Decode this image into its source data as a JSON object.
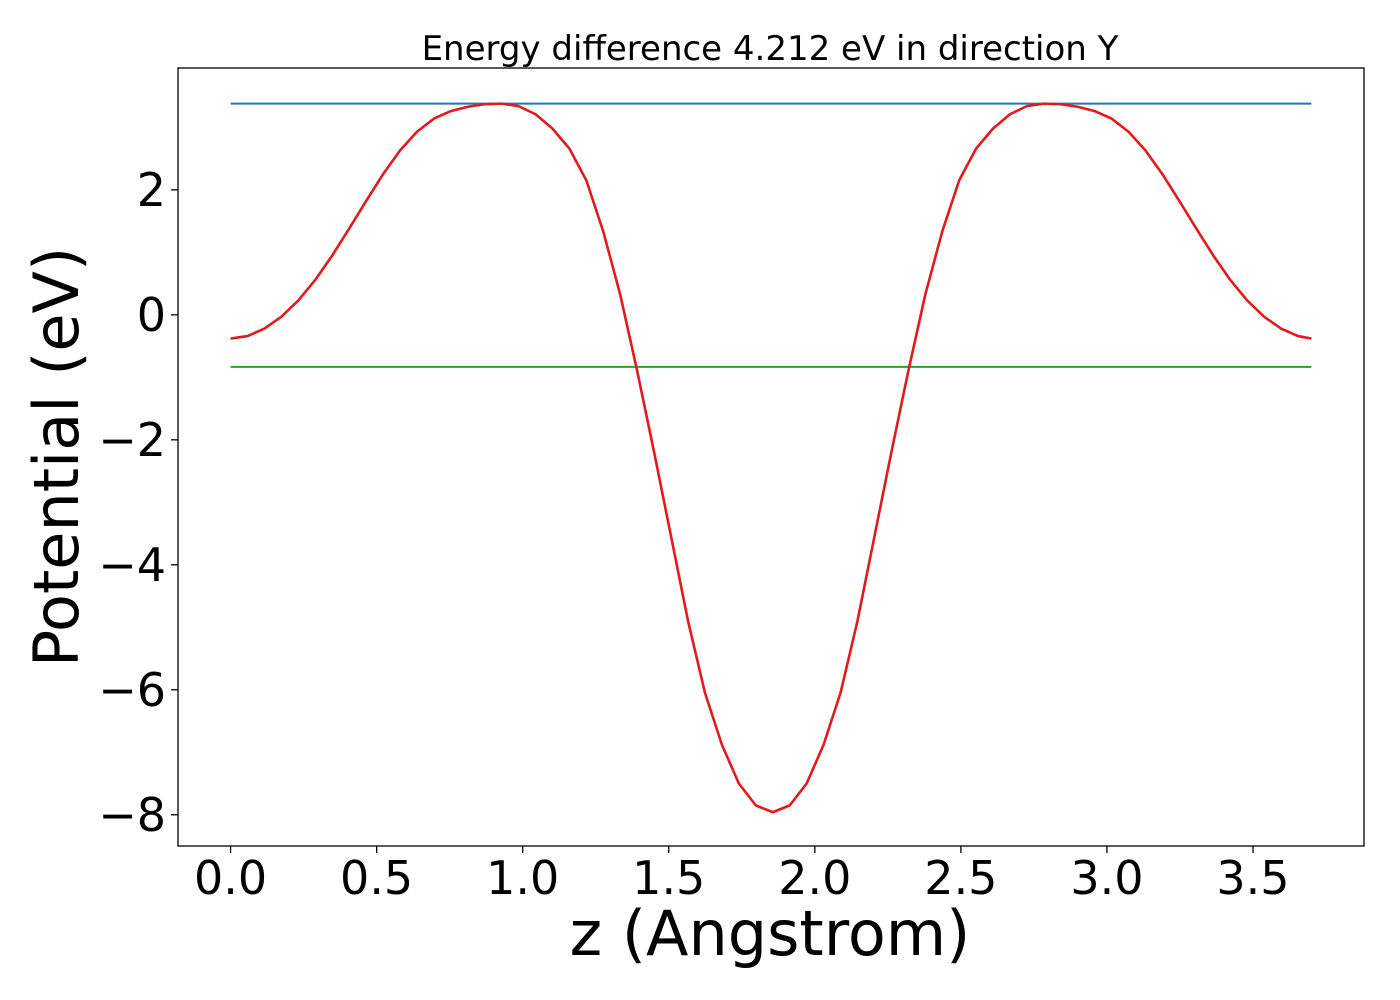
{
  "chart_data": {
    "type": "line",
    "title": "Energy difference 4.212 eV in direction Y",
    "xlabel": "z (Angstrom)",
    "ylabel": "Potential (eV)",
    "xlim": [
      -0.18,
      3.88
    ],
    "ylim": [
      -8.5,
      3.95
    ],
    "grid": false,
    "x_ticks": [
      0.0,
      0.5,
      1.0,
      1.5,
      2.0,
      2.5,
      3.0,
      3.5
    ],
    "x_tick_labels": [
      "0.0",
      "0.5",
      "1.0",
      "1.5",
      "2.0",
      "2.5",
      "3.0",
      "3.5"
    ],
    "y_ticks": [
      2,
      0,
      -2,
      -4,
      -6,
      -8
    ],
    "y_tick_labels": [
      "2",
      "0",
      "−2",
      "−4",
      "−6",
      "−8"
    ],
    "series": [
      {
        "name": "potential",
        "color": "#e31a1c",
        "x": [
          0.0,
          0.058,
          0.116,
          0.174,
          0.232,
          0.29,
          0.348,
          0.406,
          0.464,
          0.522,
          0.58,
          0.638,
          0.696,
          0.754,
          0.812,
          0.87,
          0.928,
          0.986,
          1.044,
          1.102,
          1.16,
          1.218,
          1.276,
          1.334,
          1.392,
          1.45,
          1.508,
          1.566,
          1.624,
          1.682,
          1.74,
          1.798,
          1.856,
          1.914,
          1.972,
          2.03,
          2.088,
          2.146,
          2.204,
          2.262,
          2.32,
          2.378,
          2.436,
          2.494,
          2.552,
          2.61,
          2.668,
          2.726,
          2.784,
          2.842,
          2.9,
          2.958,
          3.016,
          3.074,
          3.132,
          3.19,
          3.248,
          3.306,
          3.364,
          3.422,
          3.48,
          3.538,
          3.596,
          3.654,
          3.7
        ],
        "values": [
          -0.38,
          -0.34,
          -0.22,
          -0.03,
          0.23,
          0.56,
          0.95,
          1.38,
          1.82,
          2.25,
          2.63,
          2.93,
          3.14,
          3.26,
          3.33,
          3.37,
          3.38,
          3.34,
          3.21,
          2.98,
          2.66,
          2.15,
          1.33,
          0.32,
          -0.9,
          -2.2,
          -3.55,
          -4.9,
          -6.05,
          -6.88,
          -7.5,
          -7.85,
          -7.96,
          -7.85,
          -7.5,
          -6.88,
          -6.05,
          -4.9,
          -3.55,
          -2.2,
          -0.9,
          0.32,
          1.33,
          2.15,
          2.66,
          2.98,
          3.21,
          3.34,
          3.38,
          3.37,
          3.33,
          3.26,
          3.14,
          2.93,
          2.63,
          2.25,
          1.82,
          1.38,
          0.95,
          0.56,
          0.23,
          -0.03,
          -0.22,
          -0.34,
          -0.38
        ]
      },
      {
        "name": "maximum",
        "color": "#1f77b4",
        "x": [
          0.0,
          3.7
        ],
        "values": [
          3.38,
          3.38
        ]
      },
      {
        "name": "mean",
        "color": "#2ca02c",
        "x": [
          0.0,
          3.7
        ],
        "values": [
          -0.832,
          -0.832
        ]
      }
    ]
  }
}
